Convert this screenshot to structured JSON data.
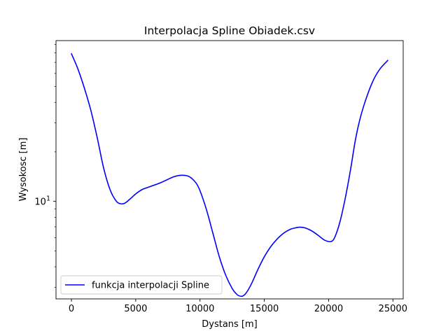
{
  "chart_data": {
    "type": "line",
    "title": "Interpolacja Spline Obiadek.csv",
    "xlabel": "Dystans [m]",
    "ylabel": "Wysokosc [m]",
    "xlim": [
      -1200,
      25800
    ],
    "ylim": [
      2.55,
      95
    ],
    "yscale": "log",
    "grid": false,
    "legend_position": "lower-left",
    "x_ticks": [
      0,
      5000,
      10000,
      15000,
      20000,
      25000
    ],
    "x_tick_labels": [
      "0",
      "5000",
      "10000",
      "15000",
      "20000",
      "25000"
    ],
    "y_major_ticks": [
      10
    ],
    "y_major_tick_labels": [
      "10^1"
    ],
    "y_minor_ticks": [
      3,
      4,
      5,
      6,
      7,
      8,
      9,
      20,
      30,
      40,
      50,
      60,
      70,
      80,
      90
    ],
    "series": [
      {
        "name": "funkcja interpolacji Spline",
        "color": "#0000ff",
        "x": [
          0,
          500,
          1000,
          1500,
          2000,
          2500,
          3000,
          3500,
          3900,
          4200,
          4600,
          5000,
          5500,
          6000,
          6500,
          7000,
          7500,
          8000,
          8500,
          9000,
          9300,
          9700,
          10000,
          10500,
          11000,
          11500,
          12000,
          12500,
          12800,
          13000,
          13300,
          13600,
          14000,
          14500,
          15000,
          15500,
          16000,
          16500,
          17000,
          17500,
          17800,
          18200,
          18700,
          19200,
          19700,
          20200,
          20500,
          20900,
          21300,
          21700,
          22100,
          22500,
          23000,
          23500,
          24000,
          24600
        ],
        "y": [
          79,
          64,
          49,
          36,
          24.5,
          16,
          11.8,
          10,
          9.65,
          9.8,
          10.4,
          11.1,
          11.8,
          12.2,
          12.6,
          13.05,
          13.6,
          14.15,
          14.4,
          14.3,
          13.9,
          12.9,
          11.6,
          8.9,
          6.4,
          4.6,
          3.55,
          2.95,
          2.75,
          2.67,
          2.65,
          2.78,
          3.15,
          3.85,
          4.6,
          5.3,
          5.9,
          6.4,
          6.75,
          6.92,
          6.96,
          6.88,
          6.6,
          6.2,
          5.8,
          5.7,
          6.1,
          7.6,
          10.5,
          15.5,
          24,
          33,
          44,
          55,
          64,
          72
        ]
      }
    ]
  }
}
